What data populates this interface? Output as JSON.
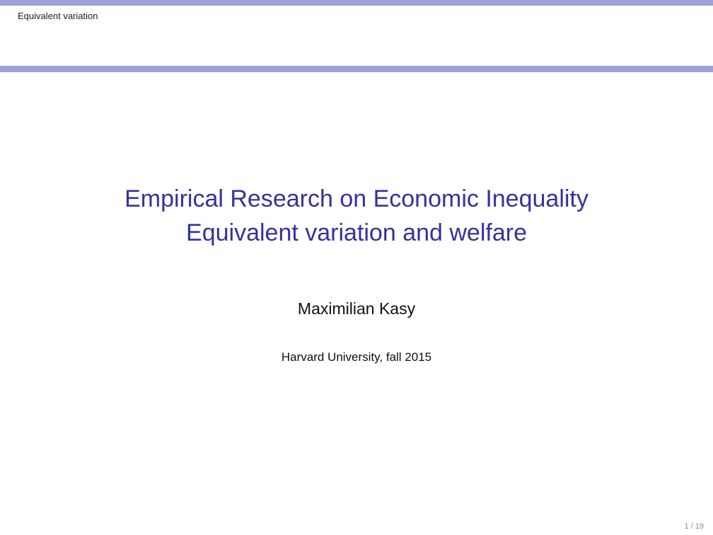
{
  "header": {
    "section_title": "Equivalent variation"
  },
  "title": {
    "line1": "Empirical Research on Economic Inequality",
    "line2": "Equivalent variation and welfare"
  },
  "author": "Maximilian Kasy",
  "institute": "Harvard University, fall 2015",
  "footer": {
    "page_number": "1 / 19"
  },
  "colors": {
    "accent_bar": "#9f9fd8",
    "title_text": "#33339a"
  }
}
